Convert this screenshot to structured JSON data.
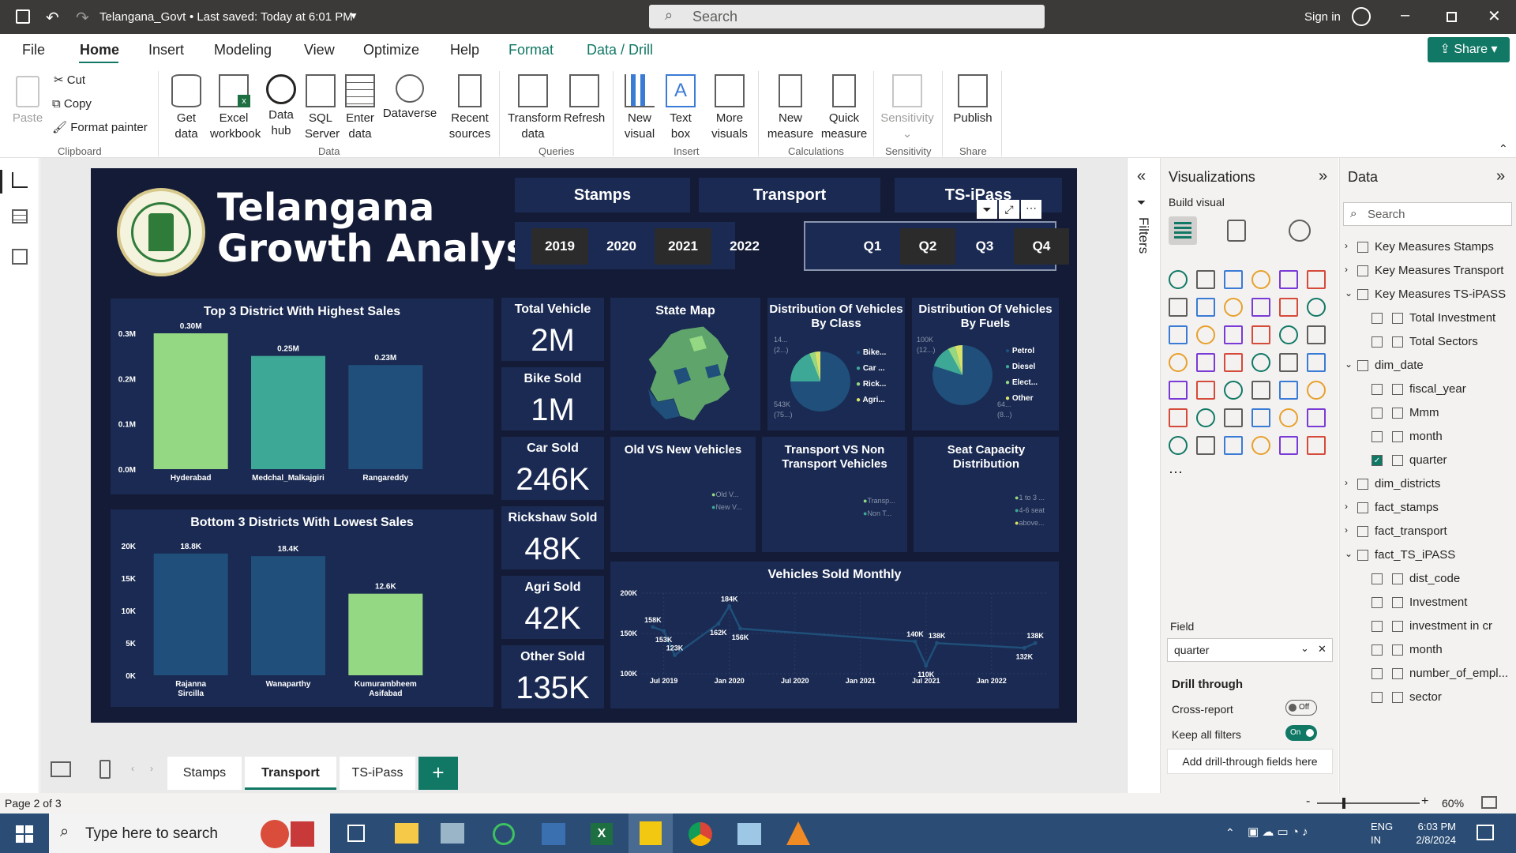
{
  "titlebar": {
    "file_title": "Telangana_Govt",
    "saved": "Last saved: Today at 6:01 PM",
    "search_placeholder": "Search",
    "sign_in": "Sign in"
  },
  "menu": {
    "tabs": [
      "File",
      "Home",
      "Insert",
      "Modeling",
      "View",
      "Optimize",
      "Help",
      "Format",
      "Data / Drill"
    ],
    "share": "Share"
  },
  "ribbon": {
    "clipboard": {
      "paste": "Paste",
      "cut": "Cut",
      "copy": "Copy",
      "format_painter": "Format painter",
      "group": "Clipboard"
    },
    "data": {
      "get_data": "Get data",
      "excel": "Excel workbook",
      "hub": "Data hub",
      "sql": "SQL Server",
      "enter": "Enter data",
      "dataverse": "Dataverse",
      "recent": "Recent sources",
      "group": "Data"
    },
    "queries": {
      "transform": "Transform data",
      "refresh": "Refresh",
      "group": "Queries"
    },
    "insert": {
      "new_visual": "New visual",
      "text_box": "Text box",
      "more_visuals": "More visuals",
      "group": "Insert"
    },
    "calc": {
      "new_measure": "New measure",
      "quick_measure": "Quick measure",
      "group": "Calculations"
    },
    "sens": {
      "label": "Sensitivity",
      "group": "Sensitivity"
    },
    "share": {
      "publish": "Publish",
      "group": "Share"
    }
  },
  "report": {
    "title_line1": "Telangana",
    "title_line2": "Growth Analysis",
    "nav": [
      "Stamps",
      "Transport",
      "TS-iPass"
    ],
    "years": [
      "2019",
      "2020",
      "2021",
      "2022"
    ],
    "quarters": [
      "Q1",
      "Q2",
      "Q3",
      "Q4"
    ],
    "top3_title": "Top 3 District With Highest Sales",
    "bottom3_title": "Bottom 3 Districts With Lowest Sales",
    "kpis": [
      {
        "label": "Total Vehicle",
        "value": "2M"
      },
      {
        "label": "Bike Sold",
        "value": "1M"
      },
      {
        "label": "Car Sold",
        "value": "246K"
      },
      {
        "label": "Rickshaw Sold",
        "value": "48K"
      },
      {
        "label": "Agri Sold",
        "value": "42K"
      },
      {
        "label": "Other Sold",
        "value": "135K"
      }
    ],
    "state_map_title": "State Map",
    "dist_class_title": "Distribution Of Vehicles By Class",
    "dist_fuel_title": "Distribution Of Vehicles By Fuels",
    "class_legend": [
      "Bike...",
      "Car ...",
      "Rick...",
      "Agri..."
    ],
    "class_labels": [
      "14...",
      "(2...)",
      "543K",
      "(75...)"
    ],
    "fuel_legend": [
      "Petrol",
      "Diesel",
      "Elect...",
      "Other"
    ],
    "fuel_labels": [
      "100K",
      "(12...)",
      "64...",
      "(8...)"
    ],
    "old_new_title": "Old VS New Vehicles",
    "old_new_legend": [
      "Old V...",
      "New V..."
    ],
    "transport_title": "Transport VS Non Transport Vehicles",
    "transport_legend": [
      "Transp...",
      "Non T..."
    ],
    "seat_title": "Seat Capacity Distribution",
    "seat_legend": [
      "1 to 3 ...",
      "4-6 seat",
      "above..."
    ],
    "monthly_title": "Vehicles Sold Monthly"
  },
  "chart_data": [
    {
      "type": "bar",
      "title": "Top 3 District With Highest Sales",
      "categories": [
        "Hyderabad",
        "Medchal_Malkajgiri",
        "Rangareddy"
      ],
      "values": [
        300000,
        250000,
        230000
      ],
      "data_labels": [
        "0.30M",
        "0.25M",
        "0.23M"
      ],
      "yticks": [
        "0.0M",
        "0.1M",
        "0.2M",
        "0.3M"
      ],
      "ylim": [
        0,
        300000
      ],
      "colors": [
        "#95d883",
        "#3da895",
        "#1f4f7a"
      ]
    },
    {
      "type": "bar",
      "title": "Bottom 3 Districts With Lowest Sales",
      "categories": [
        "Rajanna Sircilla",
        "Wanaparthy",
        "Kumurambheem Asifabad"
      ],
      "values": [
        18800,
        18400,
        12600
      ],
      "data_labels": [
        "18.8K",
        "18.4K",
        "12.6K"
      ],
      "yticks": [
        "0K",
        "5K",
        "10K",
        "15K",
        "20K"
      ],
      "ylim": [
        0,
        20000
      ],
      "colors": [
        "#1f4f7a",
        "#1f4f7a",
        "#95d883"
      ]
    },
    {
      "type": "pie",
      "title": "Distribution Of Vehicles By Class",
      "categories": [
        "Bike...",
        "Car ...",
        "Rick...",
        "Agri..."
      ],
      "values": [
        75,
        19,
        3,
        3
      ],
      "colors": [
        "#1f4f7a",
        "#3da895",
        "#95d883",
        "#d8e26a"
      ]
    },
    {
      "type": "pie",
      "title": "Distribution Of Vehicles By Fuels",
      "categories": [
        "Petrol",
        "Diesel",
        "Elect...",
        "Other"
      ],
      "values": [
        80,
        12,
        4,
        4
      ],
      "colors": [
        "#1f4f7a",
        "#3da895",
        "#95d883",
        "#d8e26a"
      ]
    },
    {
      "type": "line",
      "title": "Vehicles Sold Monthly",
      "points": [
        {
          "x": "2019-06",
          "y": 158000,
          "label": "158K"
        },
        {
          "x": "2019-07",
          "y": 153000,
          "label": "153K"
        },
        {
          "x": "2019-08",
          "y": 123000,
          "label": "123K"
        },
        {
          "x": "2019-12",
          "y": 162000,
          "label": "162K"
        },
        {
          "x": "2020-01",
          "y": 184000,
          "label": "184K"
        },
        {
          "x": "2020-02",
          "y": 156000,
          "label": "156K"
        },
        {
          "x": "2021-06",
          "y": 140000,
          "label": "140K"
        },
        {
          "x": "2021-07",
          "y": 110000,
          "label": "110K"
        },
        {
          "x": "2021-08",
          "y": 138000,
          "label": "138K"
        },
        {
          "x": "2022-04",
          "y": 132000,
          "label": "132K"
        },
        {
          "x": "2022-05",
          "y": 138000,
          "label": "138K"
        }
      ],
      "xticks": [
        "Jul 2019",
        "Jan 2020",
        "Jul 2020",
        "Jan 2021",
        "Jul 2021",
        "Jan 2022"
      ],
      "yticks": [
        "100K",
        "150K",
        "200K"
      ],
      "ylim": [
        100000,
        200000
      ],
      "color": "#1f4f7a"
    }
  ],
  "visualizations": {
    "title": "Visualizations",
    "build": "Build visual",
    "field_label": "Field",
    "field_value": "quarter",
    "drill": "Drill through",
    "cross": "Cross-report",
    "cross_state": "Off",
    "keep": "Keep all filters",
    "keep_state": "On",
    "add": "Add drill-through fields here"
  },
  "filters_label": "Filters",
  "data_pane": {
    "title": "Data",
    "search": "Search",
    "items": [
      {
        "label": "Key Measures Stamps",
        "kind": "table"
      },
      {
        "label": "Key Measures Transport",
        "kind": "table"
      },
      {
        "label": "Key Measures TS-iPASS",
        "kind": "table-open"
      },
      {
        "label": "Total Investment",
        "kind": "field"
      },
      {
        "label": "Total Sectors",
        "kind": "field"
      },
      {
        "label": "dim_date",
        "kind": "table-open"
      },
      {
        "label": "fiscal_year",
        "kind": "field"
      },
      {
        "label": "Mmm",
        "kind": "field"
      },
      {
        "label": "month",
        "kind": "field"
      },
      {
        "label": "quarter",
        "kind": "field-checked"
      },
      {
        "label": "dim_districts",
        "kind": "table"
      },
      {
        "label": "fact_stamps",
        "kind": "table"
      },
      {
        "label": "fact_transport",
        "kind": "table"
      },
      {
        "label": "fact_TS_iPASS",
        "kind": "table-open"
      },
      {
        "label": "dist_code",
        "kind": "field"
      },
      {
        "label": "Investment",
        "kind": "field"
      },
      {
        "label": "investment in cr",
        "kind": "field"
      },
      {
        "label": "month",
        "kind": "field"
      },
      {
        "label": "number_of_empl...",
        "kind": "field"
      },
      {
        "label": "sector",
        "kind": "field"
      }
    ]
  },
  "pages": {
    "tabs": [
      "Stamps",
      "Transport",
      "TS-iPass"
    ],
    "active": "Transport",
    "status": "Page 2 of 3",
    "zoom": "60%"
  },
  "taskbar": {
    "search": "Type here to search",
    "lang1": "ENG",
    "lang2": "IN",
    "time": "6:03 PM",
    "date": "2/8/2024"
  }
}
